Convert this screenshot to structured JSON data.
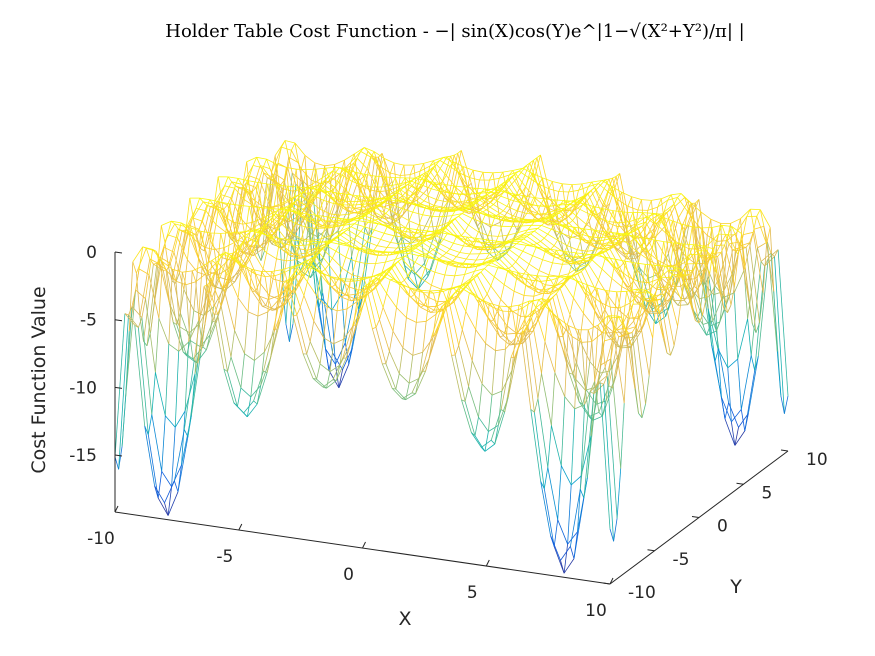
{
  "chart_data": {
    "type": "mesh3d-contour",
    "title": "Holder Table Cost Function - −| sin(X)cos(Y)e^|1−√(X²+Y²)/π| |",
    "function": "-abs(sin(x)*cos(y)*exp(abs(1-sqrt(x^2+y^2)/pi)))",
    "xlabel": "X",
    "ylabel": "Y",
    "zlabel": "Cost Function Value",
    "xlim": [
      -10,
      10
    ],
    "ylim": [
      -10,
      10
    ],
    "zlim": [
      -19.2085,
      0
    ],
    "x_ticks": [
      "-10",
      "-5",
      "0",
      "5",
      "10"
    ],
    "y_ticks": [
      "-10",
      "-5",
      "0",
      "5",
      "10"
    ],
    "z_ticks": [
      "0",
      "-5",
      "-10",
      "-15"
    ],
    "colormap": "parula",
    "grid": false,
    "global_minima": [
      {
        "x": 8.05502,
        "y": 9.66459,
        "z": -19.2085
      },
      {
        "x": -8.05502,
        "y": 9.66459,
        "z": -19.2085
      },
      {
        "x": 8.05502,
        "y": -9.66459,
        "z": -19.2085
      },
      {
        "x": -8.05502,
        "y": -9.66459,
        "z": -19.2085
      }
    ]
  }
}
